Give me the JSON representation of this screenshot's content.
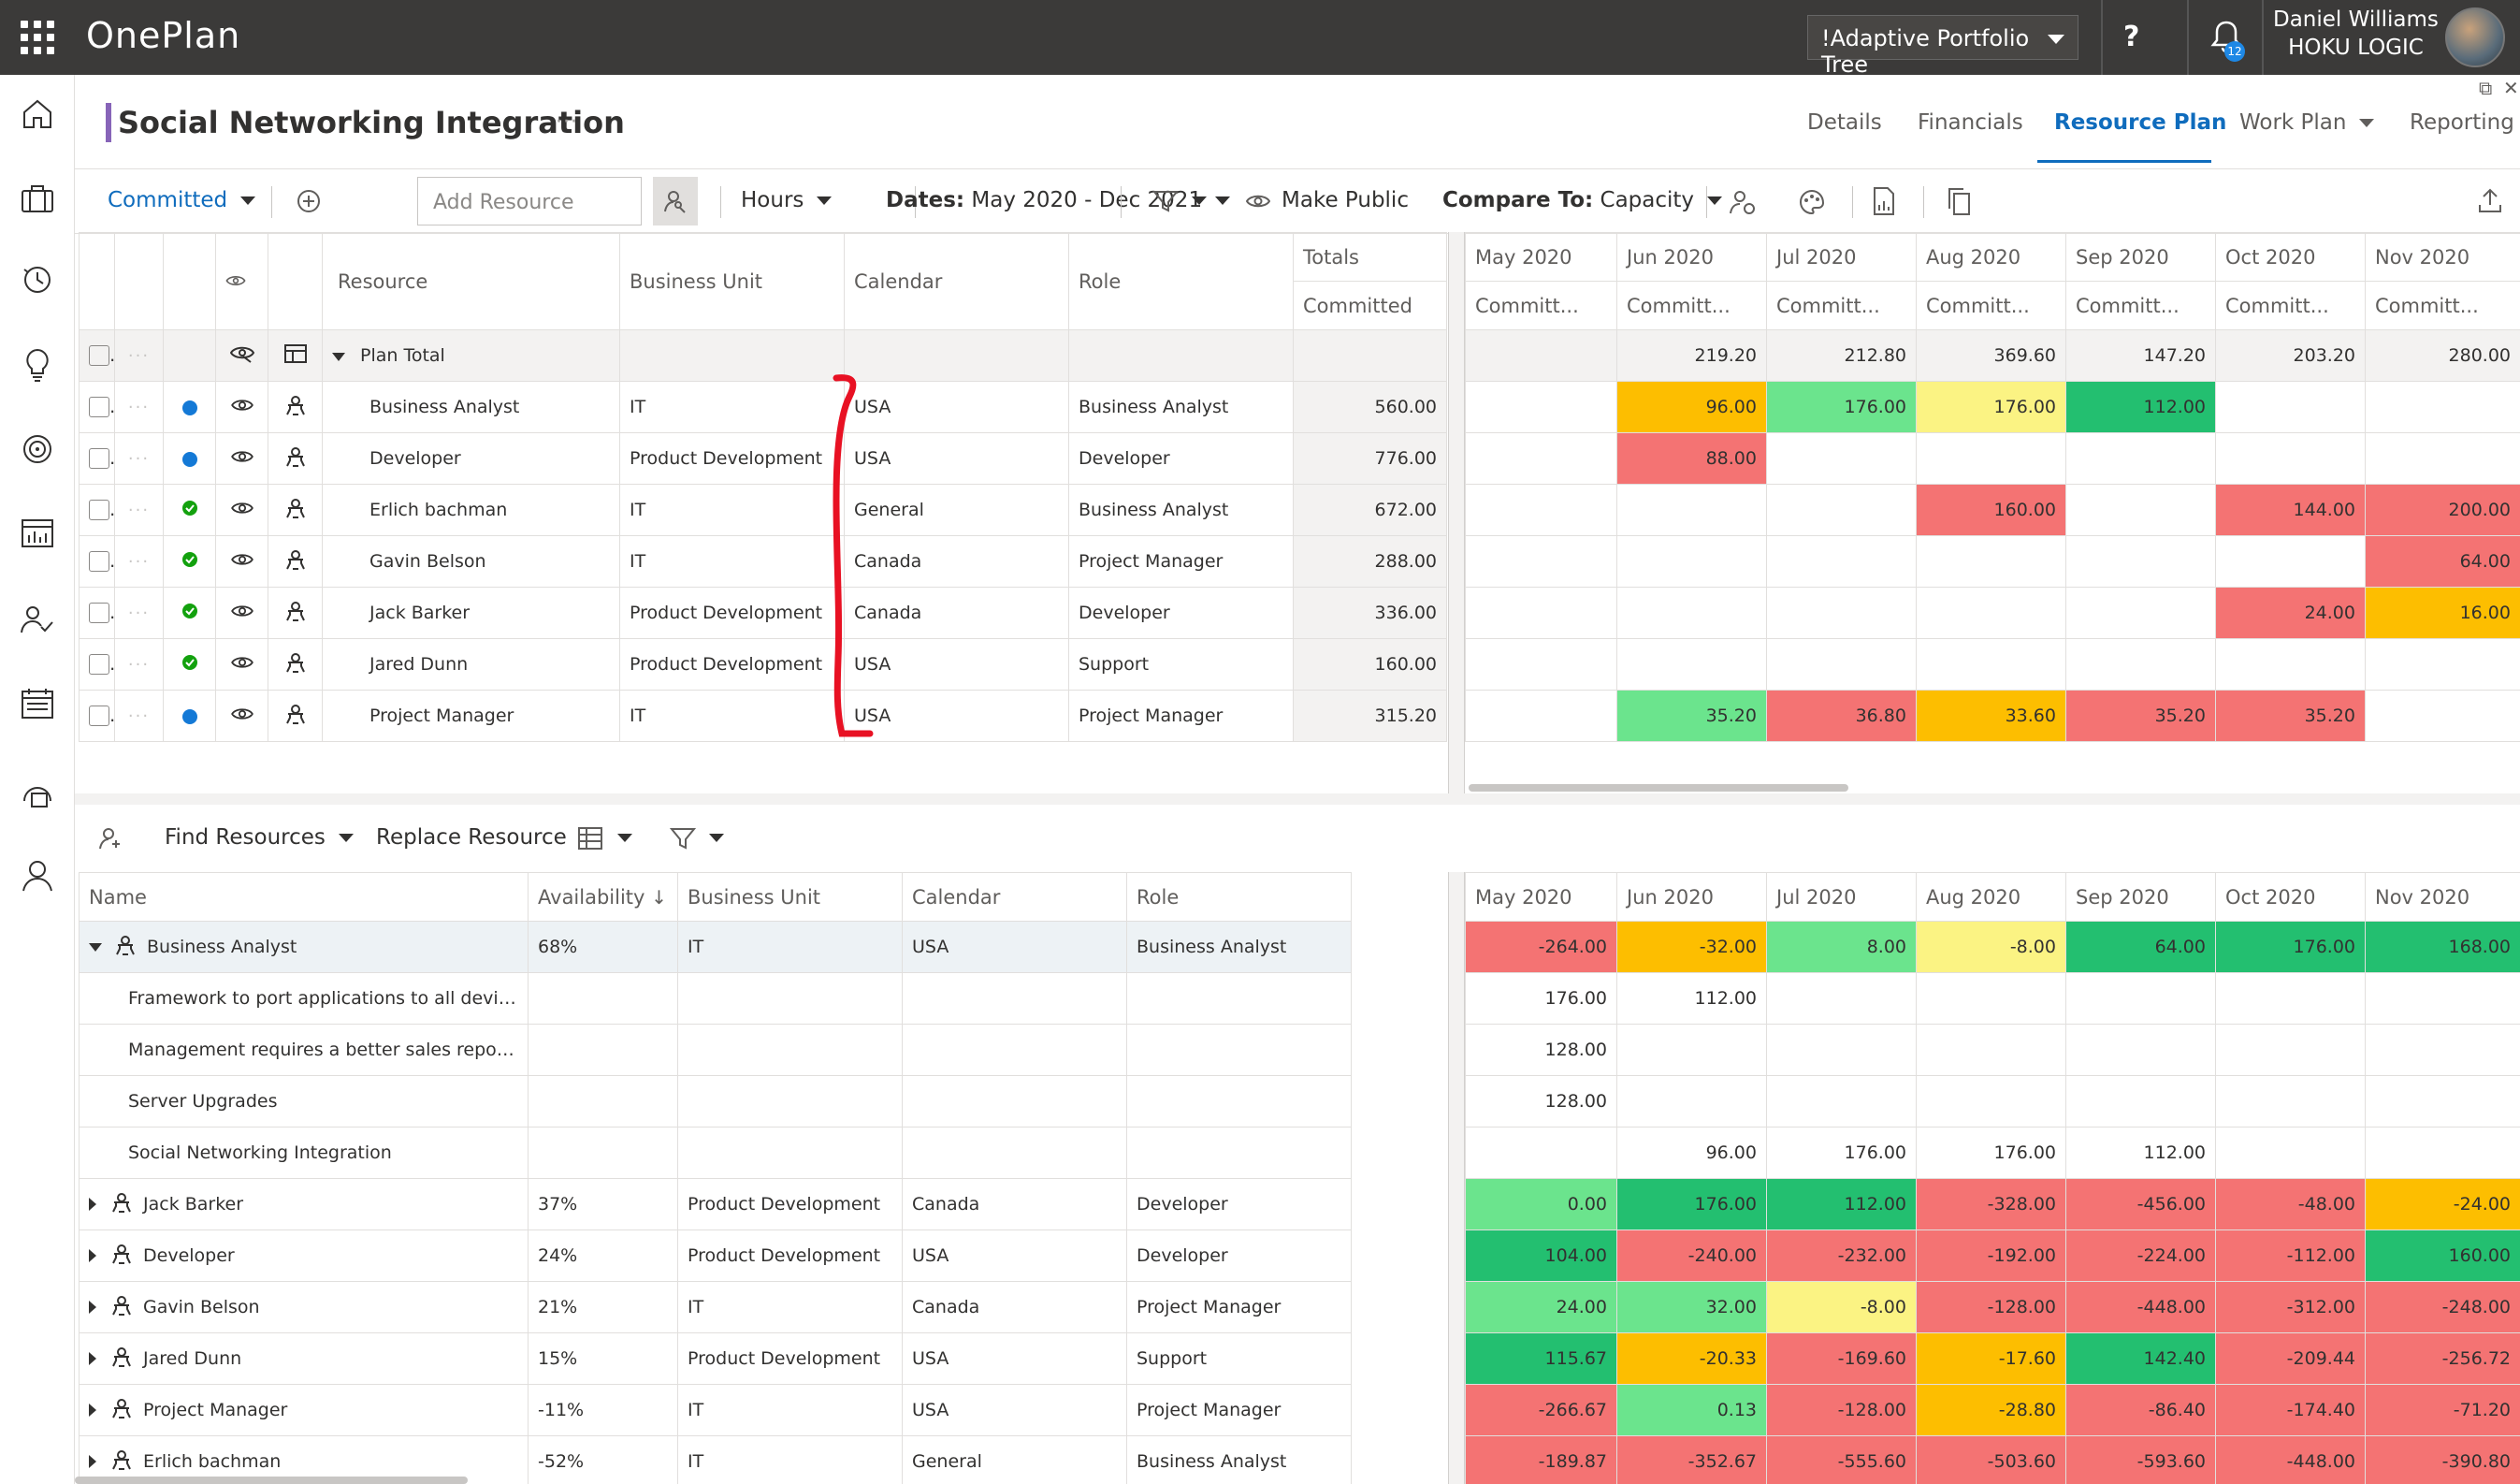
{
  "header": {
    "app_name": "OnePlan",
    "portfolio_selector": "!Adaptive Portfolio Tree",
    "help_label": "?",
    "notification_count": "12",
    "user_name": "Daniel Williams",
    "company": "HOKU LOGIC"
  },
  "project": {
    "title": "Social Networking Integration",
    "more": "···"
  },
  "tabs": [
    {
      "label": "Details"
    },
    {
      "label": "Financials"
    },
    {
      "label": "Resource Plan"
    },
    {
      "label": "Work Plan"
    },
    {
      "label": "Reporting"
    }
  ],
  "toolbar": {
    "committed": "Committed",
    "add_resource_placeholder": "Add Resource",
    "hours": "Hours",
    "dates_label": "Dates:",
    "dates_value": "May 2020 - Dec 2021",
    "make_public": "Make Public",
    "compare_label": "Compare To:",
    "compare_value": "Capacity"
  },
  "plan_grid": {
    "headers": {
      "resource": "Resource",
      "business_unit": "Business Unit",
      "calendar": "Calendar",
      "role": "Role",
      "totals": "Totals",
      "committed": "Committed"
    },
    "plan_total_label": "Plan Total",
    "rows": [
      {
        "resource": "Business Analyst",
        "business_unit": "IT",
        "calendar": "USA",
        "role": "Business Analyst",
        "total": "560.00"
      },
      {
        "resource": "Developer",
        "business_unit": "Product Development",
        "calendar": "USA",
        "role": "Developer",
        "total": "776.00"
      },
      {
        "resource": "Erlich bachman",
        "business_unit": "IT",
        "calendar": "General",
        "role": "Business Analyst",
        "total": "672.00"
      },
      {
        "resource": "Gavin Belson",
        "business_unit": "IT",
        "calendar": "Canada",
        "role": "Project Manager",
        "total": "288.00"
      },
      {
        "resource": "Jack Barker",
        "business_unit": "Product Development",
        "calendar": "Canada",
        "role": "Developer",
        "total": "336.00"
      },
      {
        "resource": "Jared Dunn",
        "business_unit": "Product Development",
        "calendar": "USA",
        "role": "Support",
        "total": "160.00"
      },
      {
        "resource": "Project Manager",
        "business_unit": "IT",
        "calendar": "USA",
        "role": "Project Manager",
        "total": "315.20"
      }
    ]
  },
  "months": [
    "May 2020",
    "Jun 2020",
    "Jul 2020",
    "Aug 2020",
    "Sep 2020",
    "Oct 2020",
    "Nov 2020"
  ],
  "committed_short": "Committ...",
  "plan_months": {
    "totals": [
      "",
      "219.20",
      "212.80",
      "369.60",
      "147.20",
      "203.20",
      "280.00"
    ],
    "rows": [
      [
        {
          "v": "",
          "c": ""
        },
        {
          "v": "96.00",
          "c": "orange"
        },
        {
          "v": "176.00",
          "c": "lgreen"
        },
        {
          "v": "176.00",
          "c": "yellow"
        },
        {
          "v": "112.00",
          "c": "dgreen"
        },
        {
          "v": "",
          "c": ""
        },
        {
          "v": "",
          "c": ""
        }
      ],
      [
        {
          "v": "",
          "c": ""
        },
        {
          "v": "88.00",
          "c": "red"
        },
        {
          "v": "",
          "c": ""
        },
        {
          "v": "",
          "c": ""
        },
        {
          "v": "",
          "c": ""
        },
        {
          "v": "",
          "c": ""
        },
        {
          "v": "",
          "c": ""
        }
      ],
      [
        {
          "v": "",
          "c": ""
        },
        {
          "v": "",
          "c": ""
        },
        {
          "v": "",
          "c": ""
        },
        {
          "v": "160.00",
          "c": "red"
        },
        {
          "v": "",
          "c": ""
        },
        {
          "v": "144.00",
          "c": "red"
        },
        {
          "v": "200.00",
          "c": "red"
        }
      ],
      [
        {
          "v": "",
          "c": ""
        },
        {
          "v": "",
          "c": ""
        },
        {
          "v": "",
          "c": ""
        },
        {
          "v": "",
          "c": ""
        },
        {
          "v": "",
          "c": ""
        },
        {
          "v": "",
          "c": ""
        },
        {
          "v": "64.00",
          "c": "red"
        }
      ],
      [
        {
          "v": "",
          "c": ""
        },
        {
          "v": "",
          "c": ""
        },
        {
          "v": "",
          "c": ""
        },
        {
          "v": "",
          "c": ""
        },
        {
          "v": "",
          "c": ""
        },
        {
          "v": "24.00",
          "c": "red"
        },
        {
          "v": "16.00",
          "c": "orange"
        }
      ],
      [
        {
          "v": "",
          "c": ""
        },
        {
          "v": "",
          "c": ""
        },
        {
          "v": "",
          "c": ""
        },
        {
          "v": "",
          "c": ""
        },
        {
          "v": "",
          "c": ""
        },
        {
          "v": "",
          "c": ""
        },
        {
          "v": "",
          "c": ""
        }
      ],
      [
        {
          "v": "",
          "c": ""
        },
        {
          "v": "35.20",
          "c": "lgreen"
        },
        {
          "v": "36.80",
          "c": "red"
        },
        {
          "v": "33.60",
          "c": "orange"
        },
        {
          "v": "35.20",
          "c": "red"
        },
        {
          "v": "35.20",
          "c": "red"
        },
        {
          "v": "",
          "c": ""
        }
      ]
    ]
  },
  "bottom_toolbar": {
    "find_resources": "Find Resources",
    "replace_resource": "Replace Resource"
  },
  "avail_grid": {
    "headers": {
      "name": "Name",
      "availability": "Availability",
      "business_unit": "Business Unit",
      "calendar": "Calendar",
      "role": "Role"
    },
    "rows": [
      {
        "type": "group",
        "expanded": true,
        "name": "Business Analyst",
        "availability": "68%",
        "business_unit": "IT",
        "calendar": "USA",
        "role": "Business Analyst"
      },
      {
        "type": "child",
        "name": "Framework to port applications to all devices"
      },
      {
        "type": "child",
        "name": "Management requires a better sales reporting ..."
      },
      {
        "type": "child",
        "name": "Server Upgrades"
      },
      {
        "type": "child",
        "name": "Social Networking Integration"
      },
      {
        "type": "group",
        "name": "Jack Barker",
        "availability": "37%",
        "business_unit": "Product Development",
        "calendar": "Canada",
        "role": "Developer"
      },
      {
        "type": "group",
        "name": "Developer",
        "availability": "24%",
        "business_unit": "Product Development",
        "calendar": "USA",
        "role": "Developer"
      },
      {
        "type": "group",
        "name": "Gavin Belson",
        "availability": "21%",
        "business_unit": "IT",
        "calendar": "Canada",
        "role": "Project Manager"
      },
      {
        "type": "group",
        "name": "Jared Dunn",
        "availability": "15%",
        "business_unit": "Product Development",
        "calendar": "USA",
        "role": "Support"
      },
      {
        "type": "group",
        "name": "Project Manager",
        "availability": "-11%",
        "business_unit": "IT",
        "calendar": "USA",
        "role": "Project Manager"
      },
      {
        "type": "group",
        "name": "Erlich bachman",
        "availability": "-52%",
        "business_unit": "IT",
        "calendar": "General",
        "role": "Business Analyst"
      }
    ]
  },
  "avail_months": [
    [
      {
        "v": "-264.00",
        "c": "red"
      },
      {
        "v": "-32.00",
        "c": "orange"
      },
      {
        "v": "8.00",
        "c": "lgreen"
      },
      {
        "v": "-8.00",
        "c": "yellow"
      },
      {
        "v": "64.00",
        "c": "dgreen"
      },
      {
        "v": "176.00",
        "c": "dgreen"
      },
      {
        "v": "168.00",
        "c": "dgreen"
      }
    ],
    [
      {
        "v": "176.00",
        "c": ""
      },
      {
        "v": "112.00",
        "c": ""
      },
      {
        "v": "",
        "c": ""
      },
      {
        "v": "",
        "c": ""
      },
      {
        "v": "",
        "c": ""
      },
      {
        "v": "",
        "c": ""
      },
      {
        "v": "",
        "c": ""
      }
    ],
    [
      {
        "v": "128.00",
        "c": ""
      },
      {
        "v": "",
        "c": ""
      },
      {
        "v": "",
        "c": ""
      },
      {
        "v": "",
        "c": ""
      },
      {
        "v": "",
        "c": ""
      },
      {
        "v": "",
        "c": ""
      },
      {
        "v": "",
        "c": ""
      }
    ],
    [
      {
        "v": "128.00",
        "c": ""
      },
      {
        "v": "",
        "c": ""
      },
      {
        "v": "",
        "c": ""
      },
      {
        "v": "",
        "c": ""
      },
      {
        "v": "",
        "c": ""
      },
      {
        "v": "",
        "c": ""
      },
      {
        "v": "",
        "c": ""
      }
    ],
    [
      {
        "v": "",
        "c": ""
      },
      {
        "v": "96.00",
        "c": ""
      },
      {
        "v": "176.00",
        "c": ""
      },
      {
        "v": "176.00",
        "c": ""
      },
      {
        "v": "112.00",
        "c": ""
      },
      {
        "v": "",
        "c": ""
      },
      {
        "v": "",
        "c": ""
      }
    ],
    [
      {
        "v": "0.00",
        "c": "lgreen"
      },
      {
        "v": "176.00",
        "c": "dgreen"
      },
      {
        "v": "112.00",
        "c": "dgreen"
      },
      {
        "v": "-328.00",
        "c": "red"
      },
      {
        "v": "-456.00",
        "c": "red"
      },
      {
        "v": "-48.00",
        "c": "red"
      },
      {
        "v": "-24.00",
        "c": "orange"
      }
    ],
    [
      {
        "v": "104.00",
        "c": "dgreen"
      },
      {
        "v": "-240.00",
        "c": "red"
      },
      {
        "v": "-232.00",
        "c": "red"
      },
      {
        "v": "-192.00",
        "c": "red"
      },
      {
        "v": "-224.00",
        "c": "red"
      },
      {
        "v": "-112.00",
        "c": "red"
      },
      {
        "v": "160.00",
        "c": "dgreen"
      }
    ],
    [
      {
        "v": "24.00",
        "c": "lgreen"
      },
      {
        "v": "32.00",
        "c": "lgreen"
      },
      {
        "v": "-8.00",
        "c": "yellow"
      },
      {
        "v": "-128.00",
        "c": "red"
      },
      {
        "v": "-448.00",
        "c": "red"
      },
      {
        "v": "-312.00",
        "c": "red"
      },
      {
        "v": "-248.00",
        "c": "red"
      }
    ],
    [
      {
        "v": "115.67",
        "c": "dgreen"
      },
      {
        "v": "-20.33",
        "c": "orange"
      },
      {
        "v": "-169.60",
        "c": "red"
      },
      {
        "v": "-17.60",
        "c": "orange"
      },
      {
        "v": "142.40",
        "c": "dgreen"
      },
      {
        "v": "-209.44",
        "c": "red"
      },
      {
        "v": "-256.72",
        "c": "red"
      }
    ],
    [
      {
        "v": "-266.67",
        "c": "red"
      },
      {
        "v": "0.13",
        "c": "lgreen"
      },
      {
        "v": "-128.00",
        "c": "red"
      },
      {
        "v": "-28.80",
        "c": "orange"
      },
      {
        "v": "-86.40",
        "c": "red"
      },
      {
        "v": "-174.40",
        "c": "red"
      },
      {
        "v": "-71.20",
        "c": "red"
      }
    ],
    [
      {
        "v": "-189.87",
        "c": "red"
      },
      {
        "v": "-352.67",
        "c": "red"
      },
      {
        "v": "-555.60",
        "c": "red"
      },
      {
        "v": "-503.60",
        "c": "red"
      },
      {
        "v": "-593.60",
        "c": "red"
      },
      {
        "v": "-448.00",
        "c": "red"
      },
      {
        "v": "-390.80",
        "c": "red"
      }
    ]
  ],
  "colors": {
    "accent": "#0f6cbd",
    "topbar": "#3b3a39",
    "red": "#f47373",
    "orange": "#fdbe00",
    "yellow": "#fbf383",
    "light_green": "#6be48d",
    "dark_green": "#23bf70",
    "annotation": "#e81123"
  }
}
